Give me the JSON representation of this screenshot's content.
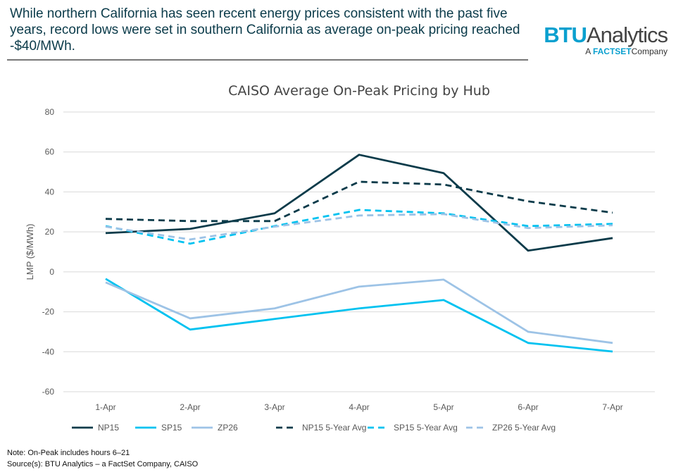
{
  "headline": "While northern California has seen recent energy prices consistent with the past five years, record lows were set in southern California as average on-peak pricing reached -$40/MWh.",
  "logo": {
    "brand": "BTU",
    "name": "Analytics",
    "prefix": "A",
    "company": "FACTSET",
    "suffix": "Company"
  },
  "notes": {
    "note": "Note:  On-Peak includes hours 6–21",
    "source": "Source(s): BTU Analytics – a FactSet Company, CAISO"
  },
  "chart_data": {
    "type": "line",
    "title": "CAISO Average On-Peak Pricing by Hub",
    "xlabel": "",
    "ylabel": "LMP ($/MWh)",
    "ylim": [
      -60,
      80
    ],
    "yticks": [
      -60,
      -40,
      -20,
      0,
      20,
      40,
      60,
      80
    ],
    "grid": true,
    "legend": "bottom",
    "categories": [
      "1-Apr",
      "2-Apr",
      "3-Apr",
      "4-Apr",
      "5-Apr",
      "6-Apr",
      "7-Apr"
    ],
    "series": [
      {
        "name": "NP15",
        "color": "#0b3b4a",
        "dashed": false,
        "values": [
          19.4,
          21.5,
          29.3,
          58.6,
          49.4,
          10.6,
          16.9
        ]
      },
      {
        "name": "SP15",
        "color": "#00c2f0",
        "dashed": false,
        "values": [
          -3.5,
          -28.9,
          -23.6,
          -18.3,
          -14.1,
          -35.6,
          -39.9
        ]
      },
      {
        "name": "ZP26",
        "color": "#9dc3e6",
        "dashed": false,
        "values": [
          -5.3,
          -23.3,
          -18.3,
          -7.4,
          -3.9,
          -30.0,
          -35.6
        ]
      },
      {
        "name": "NP15 5-Year Avg",
        "color": "#0b3b4a",
        "dashed": true,
        "values": [
          26.5,
          25.4,
          25.4,
          45.1,
          43.7,
          35.3,
          29.6
        ]
      },
      {
        "name": "SP15 5-Year Avg",
        "color": "#00c2f0",
        "dashed": true,
        "values": [
          22.9,
          14.1,
          22.9,
          31.0,
          29.3,
          22.9,
          24.0
        ]
      },
      {
        "name": "ZP26 5-Year Avg",
        "color": "#9dc3e6",
        "dashed": true,
        "values": [
          22.6,
          16.2,
          22.6,
          28.2,
          28.9,
          21.9,
          23.3
        ]
      }
    ]
  }
}
